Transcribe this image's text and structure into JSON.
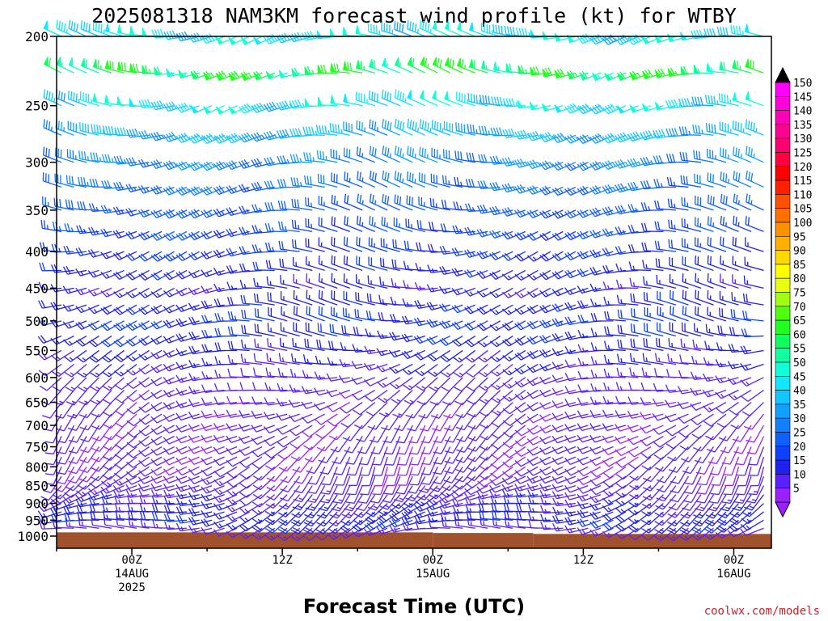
{
  "chart_data": {
    "type": "wind_barb_time_height",
    "title": "2025081318 NAM3KM forecast wind profile (kt) for WTBY",
    "xlabel": "Forecast Time (UTC)",
    "ylabel": "",
    "credit": "coolwx.com/models",
    "y_axis": {
      "scale": "log",
      "range": [
        1000,
        200
      ],
      "ticks": [
        "200",
        "250",
        "300",
        "350",
        "400",
        "450",
        "500",
        "550",
        "600",
        "650",
        "700",
        "750",
        "800",
        "850",
        "900",
        "950",
        "1000"
      ]
    },
    "x_axis": {
      "start": "2025-08-13 18Z",
      "end": "2025-08-16 03Z",
      "tick_labels": [
        {
          "time": "2025-08-14 00Z",
          "hour": "00Z",
          "date": "14AUG",
          "year": "2025"
        },
        {
          "time": "2025-08-14 12Z",
          "hour": "12Z",
          "date": "",
          "year": ""
        },
        {
          "time": "2025-08-15 00Z",
          "hour": "00Z",
          "date": "15AUG",
          "year": ""
        },
        {
          "time": "2025-08-15 12Z",
          "hour": "12Z",
          "date": "",
          "year": ""
        },
        {
          "time": "2025-08-16 00Z",
          "hour": "00Z",
          "date": "16AUG",
          "year": ""
        }
      ]
    },
    "levels_hpa": [
      1000,
      975,
      950,
      925,
      900,
      875,
      850,
      825,
      800,
      775,
      750,
      725,
      700,
      675,
      650,
      625,
      600,
      575,
      550,
      525,
      500,
      475,
      450,
      425,
      400,
      375,
      350,
      325,
      300,
      275,
      250,
      225,
      200
    ],
    "surface_pressure": [
      {
        "from": "2025-08-13 18Z",
        "to": "2025-08-15 00Z",
        "hpa": 988
      },
      {
        "from": "2025-08-15 00Z",
        "to": "2025-08-15 08Z",
        "hpa": 990
      },
      {
        "from": "2025-08-15 08Z",
        "to": "2025-08-16 03Z",
        "hpa": 993
      }
    ],
    "speed_profile_kt": [
      {
        "hpa": 1000,
        "speed": 8,
        "dir": 260
      },
      {
        "hpa": 950,
        "speed": 18,
        "dir": 250
      },
      {
        "hpa": 900,
        "speed": 15,
        "dir": 245
      },
      {
        "hpa": 850,
        "speed": 12,
        "dir": 230
      },
      {
        "hpa": 800,
        "speed": 10,
        "dir": 220
      },
      {
        "hpa": 700,
        "speed": 10,
        "dir": 230
      },
      {
        "hpa": 600,
        "speed": 12,
        "dir": 250
      },
      {
        "hpa": 500,
        "speed": 20,
        "dir": 265
      },
      {
        "hpa": 450,
        "speed": 15,
        "dir": 265
      },
      {
        "hpa": 400,
        "speed": 20,
        "dir": 265
      },
      {
        "hpa": 350,
        "speed": 25,
        "dir": 270
      },
      {
        "hpa": 300,
        "speed": 32,
        "dir": 270
      },
      {
        "hpa": 250,
        "speed": 45,
        "dir": 270
      },
      {
        "hpa": 225,
        "speed": 60,
        "dir": 272
      },
      {
        "hpa": 200,
        "speed": 45,
        "dir": 270
      }
    ],
    "colorbar": {
      "units": "kt",
      "levels": [
        "5",
        "10",
        "15",
        "20",
        "25",
        "30",
        "35",
        "40",
        "45",
        "50",
        "55",
        "60",
        "65",
        "70",
        "75",
        "80",
        "85",
        "90",
        "95",
        "100",
        "105",
        "110",
        "115",
        "120",
        "125",
        "130",
        "135",
        "140",
        "145",
        "150"
      ],
      "colors": [
        "#9b20ff",
        "#5a20ff",
        "#2020f0",
        "#1040ff",
        "#1060ff",
        "#1080ff",
        "#10a0ff",
        "#10c8ff",
        "#10e8ff",
        "#10ffd8",
        "#10ffa0",
        "#10ff60",
        "#20ff20",
        "#50ff10",
        "#a0ff10",
        "#e8ff10",
        "#ffff00",
        "#ffd800",
        "#ffb000",
        "#ff9000",
        "#ff7000",
        "#ff5000",
        "#ff2000",
        "#ff0000",
        "#ff0040",
        "#ff0070",
        "#ff0090",
        "#ff00b8",
        "#ff00d8",
        "#ff00ff"
      ],
      "cap_top_color": "#000000",
      "cap_bottom_color": "#9b20ff"
    },
    "ground_color": "#a0522d"
  }
}
